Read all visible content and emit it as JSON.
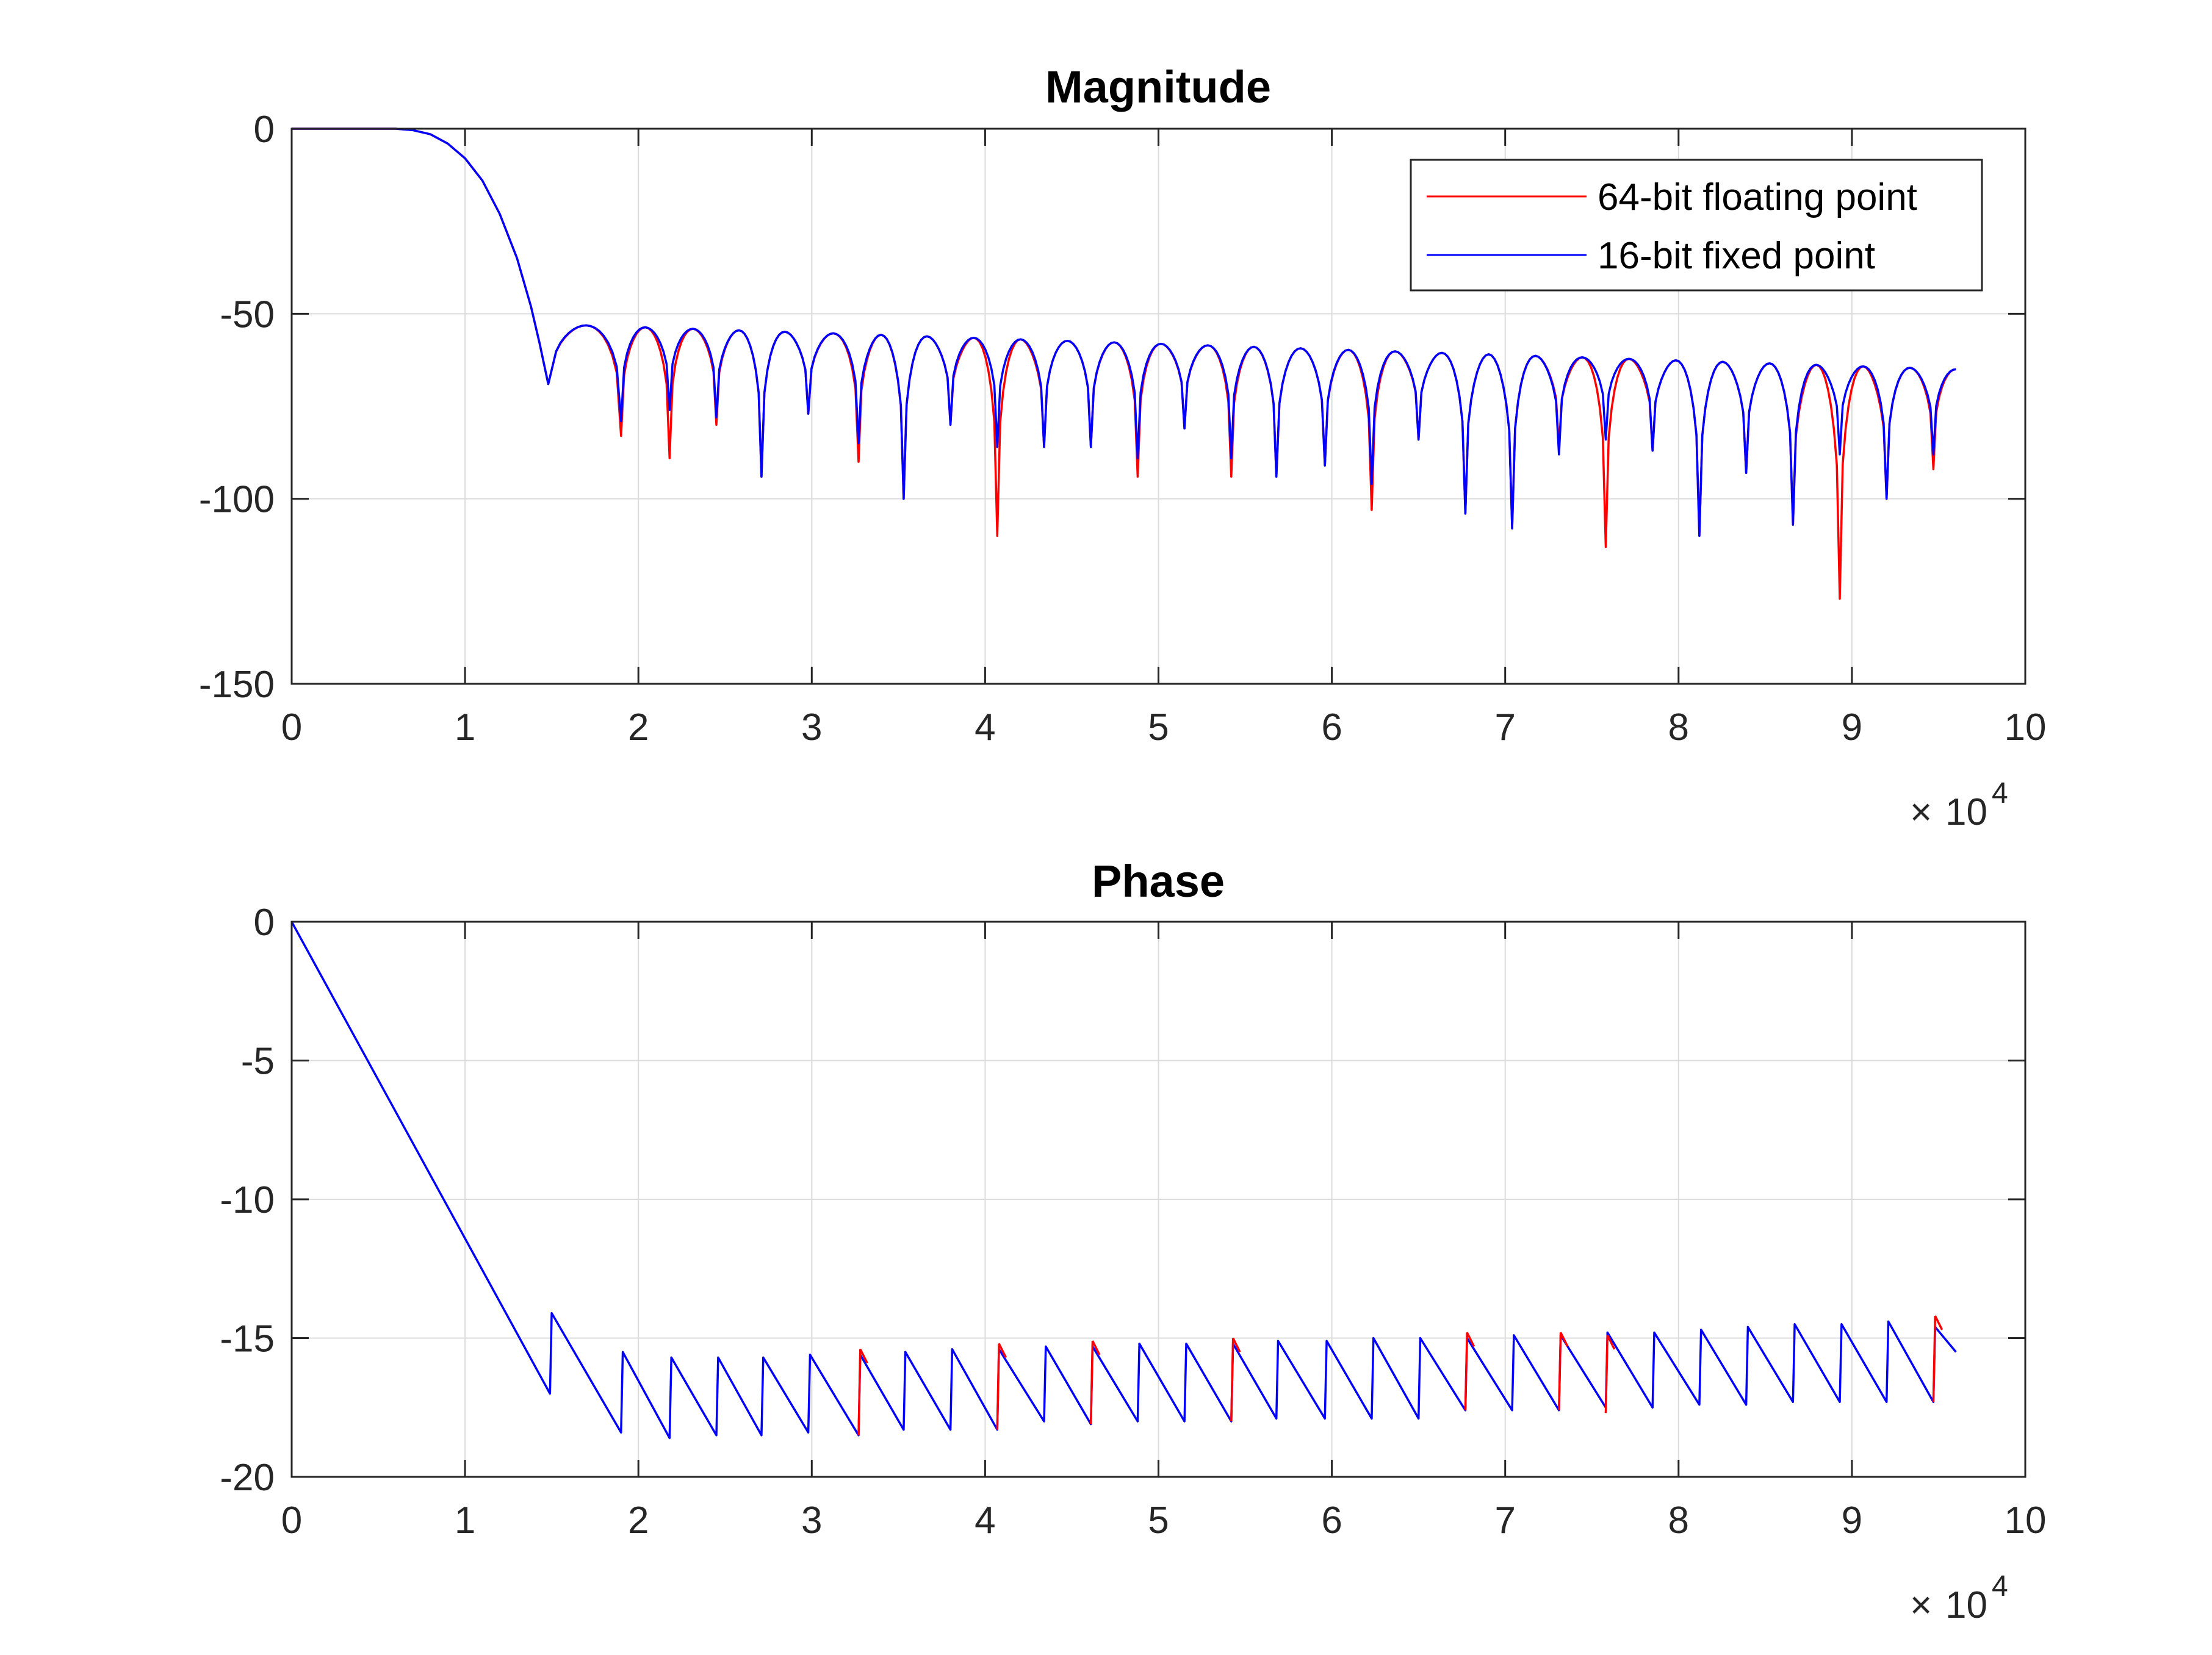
{
  "chart_data": [
    {
      "type": "line",
      "title": "Magnitude",
      "xlabel": "",
      "ylabel": "",
      "xlim": [
        0,
        10
      ],
      "ylim": [
        -150,
        0
      ],
      "x_multiplier_base": "10",
      "x_multiplier_exp": "4",
      "x_multiplier_sign": "×",
      "xticks": [
        "0",
        "1",
        "2",
        "3",
        "4",
        "5",
        "6",
        "7",
        "8",
        "9",
        "10"
      ],
      "yticks": [
        "0",
        "-50",
        "-100",
        "-150"
      ],
      "grid": true,
      "legend_position": "top-right",
      "series_colors": {
        "64-bit floating point": "#ff0000",
        "16-bit fixed point": "#0000ff"
      },
      "passband": {
        "x": [
          0,
          0.2,
          0.4,
          0.6,
          0.7,
          0.8,
          0.9,
          1.0,
          1.1,
          1.2,
          1.3,
          1.38,
          1.43,
          1.48
        ],
        "y": [
          0,
          0,
          0,
          0,
          -0.4,
          -1.5,
          -4,
          -8,
          -14,
          -23,
          -35,
          -48,
          -58,
          -69
        ]
      },
      "ripple_start": [
        1.6,
        -53
      ],
      "ripple_end": [
        9.6,
        -65
      ],
      "series": [
        {
          "name": "64-bit floating point",
          "nulls_x": [
            1.5,
            1.9,
            2.18,
            2.45,
            2.71,
            2.98,
            3.27,
            3.53,
            3.8,
            4.07,
            4.34,
            4.61,
            4.88,
            5.15,
            5.42,
            5.68,
            5.96,
            6.23,
            6.5,
            6.77,
            7.04,
            7.31,
            7.58,
            7.85,
            8.12,
            8.39,
            8.66,
            8.93,
            9.2,
            9.47
          ],
          "nulls_y": [
            -69,
            -83,
            -89,
            -80,
            -94,
            -77,
            -90,
            -100,
            -80,
            -110,
            -86,
            -86,
            -94,
            -81,
            -94,
            -94,
            -91,
            -103,
            -84,
            -104,
            -108,
            -86,
            -113,
            -87,
            -110,
            -93,
            -107,
            -127,
            -100,
            -92
          ]
        },
        {
          "name": "16-bit fixed point",
          "nulls_x": [
            1.5,
            1.9,
            2.18,
            2.45,
            2.71,
            2.98,
            3.27,
            3.53,
            3.8,
            4.07,
            4.34,
            4.61,
            4.88,
            5.15,
            5.42,
            5.68,
            5.96,
            6.23,
            6.5,
            6.77,
            7.04,
            7.31,
            7.58,
            7.85,
            8.12,
            8.39,
            8.66,
            8.93,
            9.2,
            9.47
          ],
          "nulls_y": [
            -69,
            -79,
            -76,
            -78,
            -94,
            -77,
            -85,
            -100,
            -80,
            -86,
            -86,
            -86,
            -89,
            -81,
            -89,
            -94,
            -91,
            -96,
            -84,
            -104,
            -108,
            -88,
            -84,
            -87,
            -110,
            -93,
            -107,
            -88,
            -100,
            -88
          ]
        }
      ]
    },
    {
      "type": "line",
      "title": "Phase",
      "xlabel": "",
      "ylabel": "",
      "xlim": [
        0,
        10
      ],
      "ylim": [
        -20,
        0
      ],
      "x_multiplier_base": "10",
      "x_multiplier_exp": "4",
      "x_multiplier_sign": "×",
      "xticks": [
        "0",
        "1",
        "2",
        "3",
        "4",
        "5",
        "6",
        "7",
        "8",
        "9",
        "10"
      ],
      "yticks": [
        "0",
        "-5",
        "-10",
        "-15",
        "-20"
      ],
      "grid": true,
      "series": [
        {
          "name": "16-bit fixed point",
          "color": "#0000ff",
          "x": [
            0,
            1.49,
            1.5,
            1.9,
            1.91,
            2.18,
            2.19,
            2.45,
            2.46,
            2.71,
            2.72,
            2.98,
            2.99,
            3.27,
            3.28,
            3.53,
            3.54,
            3.8,
            3.81,
            4.07,
            4.08,
            4.34,
            4.35,
            4.61,
            4.62,
            4.88,
            4.89,
            5.15,
            5.16,
            5.42,
            5.43,
            5.68,
            5.69,
            5.96,
            5.97,
            6.23,
            6.24,
            6.5,
            6.51,
            6.77,
            6.78,
            7.04,
            7.05,
            7.31,
            7.32,
            7.58,
            7.59,
            7.85,
            7.86,
            8.12,
            8.13,
            8.39,
            8.4,
            8.66,
            8.67,
            8.93,
            8.94,
            9.2,
            9.21,
            9.47,
            9.48,
            9.6
          ],
          "y": [
            0,
            -17,
            -14.1,
            -18.4,
            -15.5,
            -18.6,
            -15.7,
            -18.5,
            -15.7,
            -18.5,
            -15.7,
            -18.4,
            -15.6,
            -18.5,
            -15.6,
            -18.3,
            -15.5,
            -18.3,
            -15.4,
            -18.3,
            -15.4,
            -18.0,
            -15.3,
            -18.1,
            -15.3,
            -18.0,
            -15.2,
            -18.0,
            -15.2,
            -18.0,
            -15.2,
            -17.9,
            -15.1,
            -17.9,
            -15.1,
            -17.9,
            -15.0,
            -17.9,
            -15.0,
            -17.6,
            -15.0,
            -17.6,
            -14.9,
            -17.6,
            -14.9,
            -17.5,
            -14.8,
            -17.5,
            -14.8,
            -17.4,
            -14.7,
            -17.4,
            -14.6,
            -17.3,
            -14.5,
            -17.3,
            -14.5,
            -17.3,
            -14.4,
            -17.3,
            -14.6,
            -15.5
          ]
        },
        {
          "name": "64-bit floating point",
          "color": "#ff0000",
          "note_segments": [
            {
              "x": [
                3.27,
                3.28,
                3.32
              ],
              "y": [
                -18.5,
                -15.4,
                -15.9
              ]
            },
            {
              "x": [
                4.07,
                4.08,
                4.12
              ],
              "y": [
                -18.3,
                -15.2,
                -15.7
              ]
            },
            {
              "x": [
                4.61,
                4.62,
                4.66
              ],
              "y": [
                -18.1,
                -15.1,
                -15.6
              ]
            },
            {
              "x": [
                5.42,
                5.43,
                5.47
              ],
              "y": [
                -18.0,
                -15.0,
                -15.5
              ]
            },
            {
              "x": [
                6.77,
                6.78,
                6.82
              ],
              "y": [
                -17.6,
                -14.8,
                -15.3
              ]
            },
            {
              "x": [
                7.31,
                7.32,
                7.36
              ],
              "y": [
                -17.6,
                -14.8,
                -15.3
              ]
            },
            {
              "x": [
                7.58,
                7.59,
                7.63
              ],
              "y": [
                -17.7,
                -14.9,
                -15.4
              ]
            },
            {
              "x": [
                9.47,
                9.48,
                9.52
              ],
              "y": [
                -17.3,
                -14.2,
                -14.7
              ]
            }
          ]
        }
      ]
    }
  ]
}
